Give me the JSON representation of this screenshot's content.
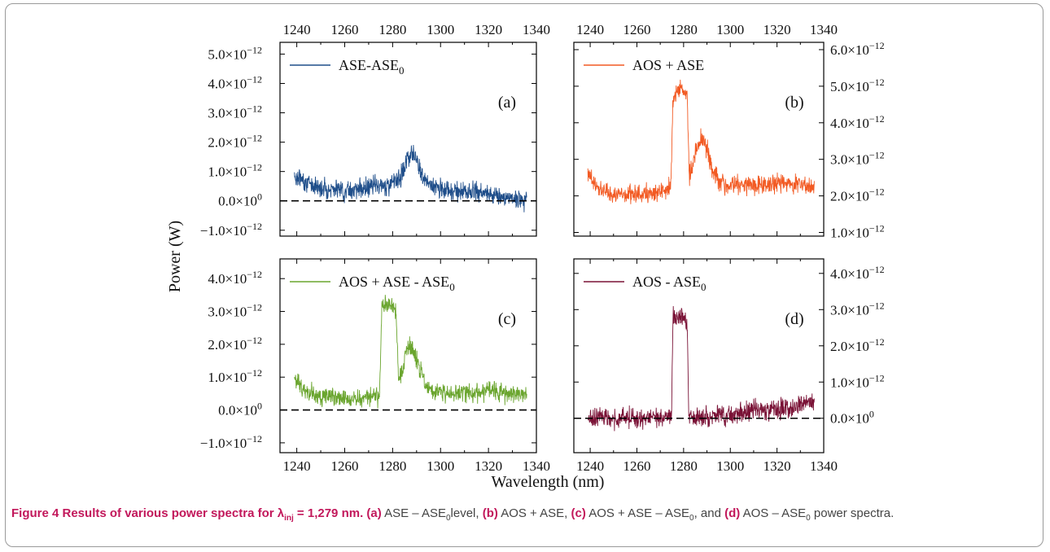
{
  "figure": {
    "ylabel": "Power (W)",
    "xlabel": "Wavelength (nm)"
  },
  "caption": {
    "lead": "Figure 4 Results of various power spectra for λ",
    "lead_sub": "inj",
    "lead_tail": " = 1,279 nm.",
    "a_tag": "(a)",
    "a_text": " ASE – ASE",
    "a_sub": "0",
    "a_tail": "level, ",
    "b_tag": "(b)",
    "b_text": " AOS + ASE, ",
    "c_tag": "(c)",
    "c_text": " AOS + ASE – ASE",
    "c_sub": "0",
    "c_tail": ", and ",
    "d_tag": "(d)",
    "d_text": " AOS – ASE",
    "d_sub": "0",
    "d_tail": " power spectra."
  },
  "chart_data": [
    {
      "type": "line",
      "panel_label": "(a)",
      "color": "#1f4e8a",
      "xlim": [
        1233,
        1340
      ],
      "ylim": [
        -1.2e-12,
        5.4e-12
      ],
      "x_ticks": [
        "1240",
        "1260",
        "1280",
        "1300",
        "1320",
        "1340"
      ],
      "x_tick_values": [
        1240,
        1260,
        1280,
        1300,
        1320,
        1340
      ],
      "y_tick_labels": [
        {
          "value": -1e-12,
          "m": "−1.0×10",
          "e": "−12"
        },
        {
          "value": 0,
          "m": "0.0×10",
          "e": "0"
        },
        {
          "value": 1e-12,
          "m": "1.0×10",
          "e": "−12"
        },
        {
          "value": 2e-12,
          "m": "2.0×10",
          "e": "−12"
        },
        {
          "value": 3e-12,
          "m": "3.0×10",
          "e": "−12"
        },
        {
          "value": 4e-12,
          "m": "4.0×10",
          "e": "−12"
        },
        {
          "value": 5e-12,
          "m": "5.0×10",
          "e": "−12"
        }
      ],
      "y_axis_side": "left",
      "x_tick_labels_on": "top",
      "zero_line": 0,
      "legend": {
        "text": "ASE-ASE",
        "sub": "0",
        "loc": "top-left"
      },
      "series": [
        {
          "name": "ASE-ASE0",
          "x": [
            1239,
            1245,
            1250,
            1255,
            1260,
            1265,
            1270,
            1275,
            1280,
            1284,
            1286,
            1288,
            1290,
            1292,
            1295,
            1300,
            1305,
            1310,
            1315,
            1320,
            1325,
            1330,
            1336
          ],
          "y": [
            8.5e-13,
            6e-13,
            4.5e-13,
            4e-13,
            3.5e-13,
            4e-13,
            4.5e-13,
            5e-13,
            6e-13,
            9e-13,
            1.4e-12,
            1.75e-12,
            1.5e-12,
            9e-13,
            5.5e-13,
            4e-13,
            3.5e-13,
            3e-13,
            2.5e-13,
            2.5e-13,
            1.5e-13,
            1e-13,
            5e-14
          ]
        }
      ]
    },
    {
      "type": "line",
      "panel_label": "(b)",
      "color": "#f25a23",
      "xlim": [
        1233,
        1340
      ],
      "ylim": [
        9e-13,
        6.2e-12
      ],
      "x_ticks": [
        "1240",
        "1260",
        "1280",
        "1300",
        "1320",
        "1340"
      ],
      "x_tick_values": [
        1240,
        1260,
        1280,
        1300,
        1320,
        1340
      ],
      "y_tick_labels": [
        {
          "value": 1e-12,
          "m": "1.0×10",
          "e": "−12"
        },
        {
          "value": 2e-12,
          "m": "2.0×10",
          "e": "−12"
        },
        {
          "value": 3e-12,
          "m": "3.0×10",
          "e": "−12"
        },
        {
          "value": 4e-12,
          "m": "4.0×10",
          "e": "−12"
        },
        {
          "value": 5e-12,
          "m": "5.0×10",
          "e": "−12"
        },
        {
          "value": 6e-12,
          "m": "6.0×10",
          "e": "−12"
        }
      ],
      "y_axis_side": "right",
      "x_tick_labels_on": "top",
      "zero_line": null,
      "legend": {
        "text": "AOS + ASE",
        "sub": "",
        "loc": "top-left"
      },
      "series": [
        {
          "name": "AOS + ASE",
          "x": [
            1239,
            1242,
            1245,
            1250,
            1255,
            1260,
            1265,
            1270,
            1274.5,
            1275.5,
            1278,
            1280,
            1281.5,
            1282.5,
            1284,
            1286,
            1288,
            1290,
            1292,
            1295,
            1300,
            1310,
            1320,
            1330,
            1336
          ],
          "y": [
            2.7e-12,
            2.3e-12,
            2.15e-12,
            2.05e-12,
            2e-12,
            2.05e-12,
            2.05e-12,
            2.1e-12,
            2.2e-12,
            4.7e-12,
            4.9e-12,
            4.8e-12,
            4.8e-12,
            2.5e-12,
            2.9e-12,
            3.4e-12,
            3.6e-12,
            3.3e-12,
            2.8e-12,
            2.4e-12,
            2.3e-12,
            2.3e-12,
            2.35e-12,
            2.3e-12,
            2.25e-12
          ]
        }
      ]
    },
    {
      "type": "line",
      "panel_label": "(c)",
      "color": "#6aa52e",
      "xlim": [
        1233,
        1340
      ],
      "ylim": [
        -1.3e-12,
        4.6e-12
      ],
      "x_ticks": [
        "1240",
        "1260",
        "1280",
        "1300",
        "1320",
        "1340"
      ],
      "x_tick_values": [
        1240,
        1260,
        1280,
        1300,
        1320,
        1340
      ],
      "y_tick_labels": [
        {
          "value": -1e-12,
          "m": "−1.0×10",
          "e": "−12"
        },
        {
          "value": 0,
          "m": "0.0×10",
          "e": "0"
        },
        {
          "value": 1e-12,
          "m": "1.0×10",
          "e": "−12"
        },
        {
          "value": 2e-12,
          "m": "2.0×10",
          "e": "−12"
        },
        {
          "value": 3e-12,
          "m": "3.0×10",
          "e": "−12"
        },
        {
          "value": 4e-12,
          "m": "4.0×10",
          "e": "−12"
        }
      ],
      "y_axis_side": "left",
      "x_tick_labels_on": "bottom",
      "zero_line": 0,
      "legend": {
        "text": "AOS + ASE - ASE",
        "sub": "0",
        "loc": "top-left"
      },
      "series": [
        {
          "name": "AOS + ASE - ASE0",
          "x": [
            1239,
            1242,
            1245,
            1250,
            1255,
            1260,
            1265,
            1270,
            1274.5,
            1275.5,
            1278,
            1280,
            1281.5,
            1282.5,
            1284,
            1286,
            1288,
            1290,
            1292,
            1295,
            1300,
            1310,
            1320,
            1330,
            1336
          ],
          "y": [
            1e-12,
            7e-13,
            5e-13,
            4e-13,
            4e-13,
            3.5e-13,
            3.5e-13,
            4e-13,
            4e-13,
            3.1e-12,
            3.2e-12,
            3.1e-12,
            3e-12,
            8e-13,
            1.2e-12,
            1.8e-12,
            1.9e-12,
            1.6e-12,
            1.1e-12,
            6.5e-13,
            5e-13,
            5.5e-13,
            5.5e-13,
            5e-13,
            5e-13
          ]
        }
      ]
    },
    {
      "type": "line",
      "panel_label": "(d)",
      "color": "#7a1236",
      "xlim": [
        1233,
        1340
      ],
      "ylim": [
        -9.5e-13,
        4.4e-12
      ],
      "x_ticks": [
        "1240",
        "1260",
        "1280",
        "1300",
        "1320",
        "1340"
      ],
      "x_tick_values": [
        1240,
        1260,
        1280,
        1300,
        1320,
        1340
      ],
      "y_tick_labels": [
        {
          "value": 0,
          "m": "0.0×10",
          "e": "0"
        },
        {
          "value": 1e-12,
          "m": "1.0×10",
          "e": "−12"
        },
        {
          "value": 2e-12,
          "m": "2.0×10",
          "e": "−12"
        },
        {
          "value": 3e-12,
          "m": "3.0×10",
          "e": "−12"
        },
        {
          "value": 4e-12,
          "m": "4.0×10",
          "e": "−12"
        }
      ],
      "y_axis_side": "right",
      "x_tick_labels_on": "bottom",
      "zero_line": 0,
      "legend": {
        "text": "AOS - ASE",
        "sub": "0",
        "loc": "top-left"
      },
      "series": [
        {
          "name": "AOS - ASE0",
          "x": [
            1239,
            1245,
            1250,
            1255,
            1260,
            1265,
            1270,
            1274.8,
            1275.5,
            1278,
            1280,
            1281.5,
            1282.3,
            1286,
            1290,
            1295,
            1300,
            1305,
            1310,
            1315,
            1320,
            1325,
            1330,
            1336
          ],
          "y": [
            0,
            5e-14,
            -5e-14,
            0,
            0,
            5e-14,
            0,
            0,
            2.8e-12,
            2.85e-12,
            2.75e-12,
            2.7e-12,
            0,
            5e-14,
            5e-14,
            1e-13,
            1e-13,
            1.5e-13,
            2e-13,
            2.5e-13,
            2.5e-13,
            3e-13,
            4e-13,
            4.5e-13
          ]
        }
      ]
    }
  ]
}
